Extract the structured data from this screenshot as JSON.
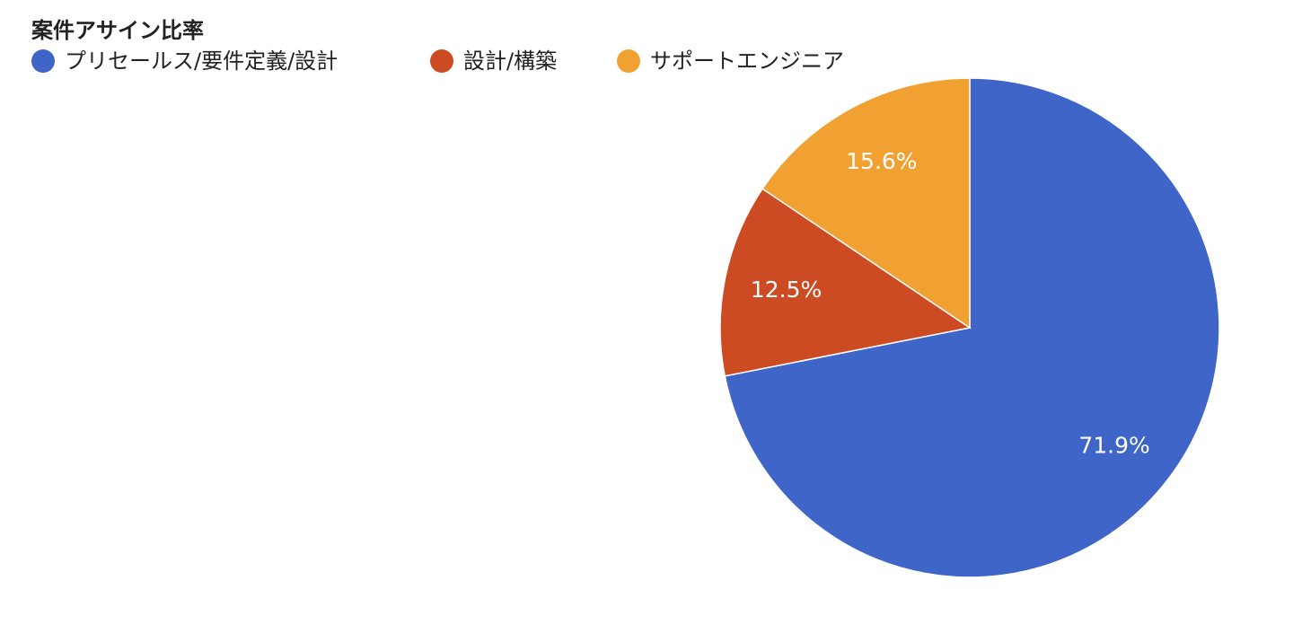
{
  "chart_data": {
    "type": "pie",
    "title": "案件アサイン比率",
    "categories": [
      "プリセールス/要件定義/設計",
      "設計/構築",
      "サポートエンジニア"
    ],
    "values": [
      71.9,
      12.5,
      15.6
    ],
    "value_labels": [
      "71.9%",
      "12.5%",
      "15.6%"
    ],
    "colors": [
      "#3f65c9",
      "#cc4b23",
      "#f0a132"
    ],
    "legend": "top"
  }
}
